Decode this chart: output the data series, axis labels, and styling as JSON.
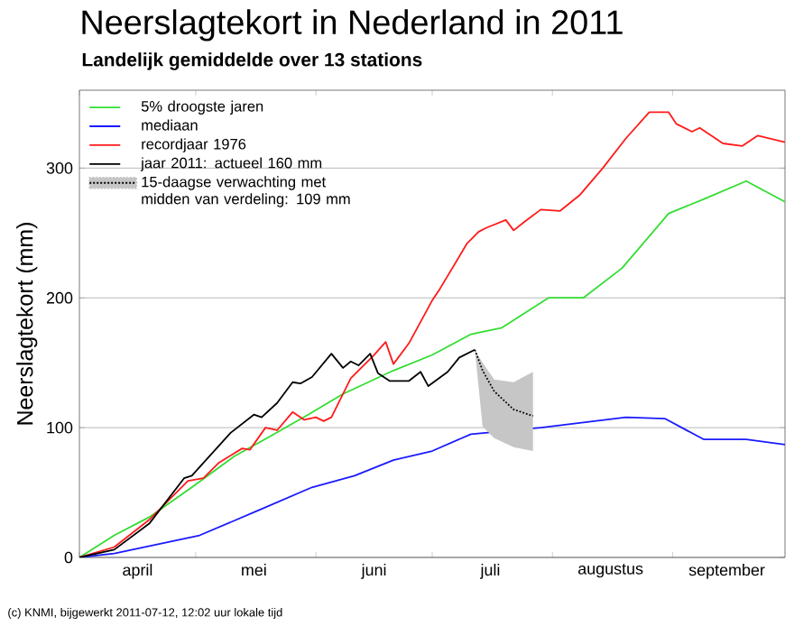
{
  "chart_data": {
    "type": "line",
    "title": "Neerslagtekort in Nederland in 2011",
    "subtitle": "Landelijk gemiddelde over 13 stations",
    "ylabel": "Neerslagtekort (mm)",
    "annotations": [
      "(c) KNMI, bijgewerkt 2011-07-12, 12:02 uur lokale tijd"
    ],
    "xlim": [
      "2011-04-01",
      "2011-09-30"
    ],
    "xticks": [
      {
        "value": "2011-04-01",
        "label": null
      },
      {
        "value": "2011-05-01",
        "label": null
      },
      {
        "value": "2011-06-01",
        "label": null
      },
      {
        "value": "2011-07-01",
        "label": null
      },
      {
        "value": "2011-08-01",
        "label": null
      },
      {
        "value": "2011-09-01",
        "label": null
      },
      {
        "value": "2011-04-16",
        "label": "april"
      },
      {
        "value": "2011-05-16",
        "label": "mei"
      },
      {
        "value": "2011-06-16",
        "label": "juni"
      },
      {
        "value": "2011-07-16",
        "label": "juli"
      },
      {
        "value": "2011-08-16",
        "label": "augustus"
      },
      {
        "value": "2011-09-15",
        "label": "september"
      }
    ],
    "ylim": [
      0,
      360
    ],
    "yticks": [
      0,
      100,
      200,
      300
    ],
    "grid": "y",
    "legend": "top left",
    "marker": "none",
    "series": [
      {
        "name": "5% droogste jaren",
        "color": "#33dd33",
        "line_style": "solid",
        "x": [
          "2011-04-01",
          "2011-04-10",
          "2011-04-19",
          "2011-04-30",
          "2011-05-11",
          "2011-05-20",
          "2011-05-30",
          "2011-06-08",
          "2011-06-21",
          "2011-07-01",
          "2011-07-11",
          "2011-07-19",
          "2011-07-31",
          "2011-08-09",
          "2011-08-19",
          "2011-08-31",
          "2011-09-09",
          "2011-09-20",
          "2011-09-30"
        ],
        "values": [
          0,
          17,
          31,
          54,
          78,
          93,
          110,
          126,
          144,
          156,
          172,
          177,
          200,
          200,
          223,
          265,
          276,
          290,
          274
        ]
      },
      {
        "name": "mediaan",
        "color": "#1a1aff",
        "line_style": "solid",
        "x": [
          "2011-04-01",
          "2011-04-10",
          "2011-05-02",
          "2011-05-17",
          "2011-05-31",
          "2011-06-11",
          "2011-06-21",
          "2011-07-01",
          "2011-07-11",
          "2011-07-29",
          "2011-08-20",
          "2011-08-30",
          "2011-09-09",
          "2011-09-20",
          "2011-09-30"
        ],
        "values": [
          0,
          3,
          17,
          36,
          54,
          63,
          75,
          82,
          95,
          100,
          108,
          107,
          91,
          91,
          87
        ]
      },
      {
        "name": "recordjaar 1976",
        "color": "#ff1a1a",
        "line_style": "solid",
        "x": [
          "2011-04-01",
          "2011-04-10",
          "2011-04-19",
          "2011-04-29",
          "2011-05-03",
          "2011-05-07",
          "2011-05-13",
          "2011-05-15",
          "2011-05-19",
          "2011-05-22",
          "2011-05-26",
          "2011-05-29",
          "2011-06-01",
          "2011-06-03",
          "2011-06-05",
          "2011-06-10",
          "2011-06-16",
          "2011-06-19",
          "2011-06-21",
          "2011-06-25",
          "2011-07-01",
          "2011-07-03",
          "2011-07-10",
          "2011-07-13",
          "2011-07-15",
          "2011-07-20",
          "2011-07-22",
          "2011-07-25",
          "2011-07-29",
          "2011-08-03",
          "2011-08-08",
          "2011-08-14",
          "2011-08-20",
          "2011-08-26",
          "2011-08-31",
          "2011-09-02",
          "2011-09-06",
          "2011-09-08",
          "2011-09-14",
          "2011-09-19",
          "2011-09-23",
          "2011-09-30"
        ],
        "values": [
          0,
          8,
          29,
          59,
          61,
          73,
          84,
          83,
          100,
          98,
          112,
          106,
          108,
          105,
          108,
          138,
          156,
          166,
          149,
          165,
          198,
          207,
          242,
          251,
          254,
          260,
          252,
          259,
          268,
          267,
          279,
          300,
          323,
          343,
          343,
          334,
          328,
          331,
          319,
          317,
          325,
          320
        ]
      },
      {
        "name": "jaar 2011: actueel 160 mm",
        "color": "#000000",
        "line_style": "solid",
        "x": [
          "2011-04-01",
          "2011-04-10",
          "2011-04-19",
          "2011-04-28",
          "2011-04-30",
          "2011-05-10",
          "2011-05-16",
          "2011-05-18",
          "2011-05-22",
          "2011-05-26",
          "2011-05-28",
          "2011-05-31",
          "2011-06-05",
          "2011-06-08",
          "2011-06-10",
          "2011-06-12",
          "2011-06-15",
          "2011-06-17",
          "2011-06-20",
          "2011-06-25",
          "2011-06-28",
          "2011-06-30",
          "2011-07-05",
          "2011-07-08",
          "2011-07-12"
        ],
        "values": [
          0,
          6,
          26,
          61,
          63,
          96,
          110,
          108,
          119,
          135,
          134,
          139,
          157,
          146,
          151,
          148,
          157,
          142,
          136,
          136,
          143,
          132,
          143,
          154,
          160
        ]
      },
      {
        "name": "15-daagse verwachting met midden van verdeling: 109 mm",
        "color": "#000000",
        "line_style": "dotted",
        "x": [
          "2011-07-12",
          "2011-07-14",
          "2011-07-17",
          "2011-07-22",
          "2011-07-27"
        ],
        "values": [
          160,
          144,
          128,
          114,
          109
        ],
        "lower": [
          160,
          101,
          92,
          85,
          82
        ],
        "upper": [
          160,
          150,
          137,
          135,
          143
        ]
      }
    ]
  }
}
